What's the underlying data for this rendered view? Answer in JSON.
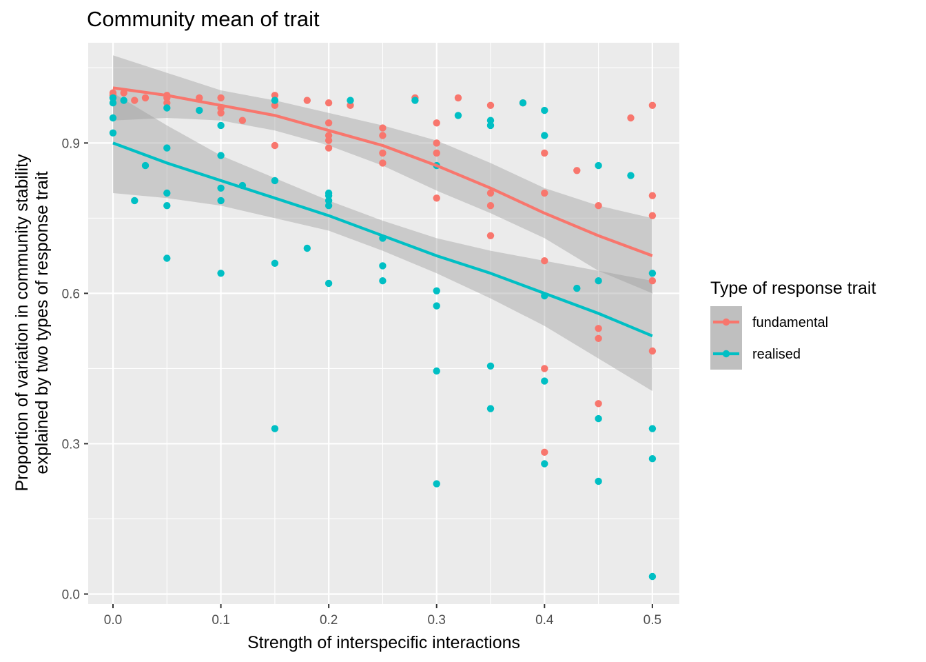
{
  "chart_data": {
    "type": "scatter",
    "title": "Community mean of trait",
    "xlabel": "Strength of interspecific interactions",
    "ylabel_lines": [
      "Proportion of variation in community stability",
      "explained by two types of response trait"
    ],
    "xlim": [
      -0.023,
      0.525
    ],
    "ylim": [
      -0.02,
      1.1
    ],
    "x_ticks": [
      0.0,
      0.1,
      0.2,
      0.3,
      0.4,
      0.5
    ],
    "x_tick_labels": [
      "0.0",
      "0.1",
      "0.2",
      "0.3",
      "0.4",
      "0.5"
    ],
    "y_ticks": [
      0.0,
      0.3,
      0.6,
      0.9
    ],
    "y_tick_labels": [
      "0.0",
      "0.3",
      "0.6",
      "0.9"
    ],
    "grid": true,
    "legend": {
      "title": "Type of response trait",
      "placement": "right"
    },
    "series": [
      {
        "name": "fundamental",
        "color": "#F8766D",
        "points": [
          [
            0.0,
            1.0
          ],
          [
            0.0,
            0.995
          ],
          [
            0.0,
            0.99
          ],
          [
            0.01,
            1.0
          ],
          [
            0.02,
            0.985
          ],
          [
            0.03,
            0.99
          ],
          [
            0.05,
            0.995
          ],
          [
            0.05,
            0.99
          ],
          [
            0.05,
            0.98
          ],
          [
            0.08,
            0.99
          ],
          [
            0.1,
            0.99
          ],
          [
            0.1,
            0.97
          ],
          [
            0.1,
            0.96
          ],
          [
            0.12,
            0.945
          ],
          [
            0.15,
            0.995
          ],
          [
            0.15,
            0.975
          ],
          [
            0.15,
            0.895
          ],
          [
            0.18,
            0.985
          ],
          [
            0.2,
            0.98
          ],
          [
            0.2,
            0.94
          ],
          [
            0.2,
            0.915
          ],
          [
            0.2,
            0.905
          ],
          [
            0.2,
            0.89
          ],
          [
            0.22,
            0.975
          ],
          [
            0.25,
            0.93
          ],
          [
            0.25,
            0.915
          ],
          [
            0.25,
            0.88
          ],
          [
            0.25,
            0.86
          ],
          [
            0.28,
            0.99
          ],
          [
            0.3,
            0.94
          ],
          [
            0.3,
            0.9
          ],
          [
            0.3,
            0.88
          ],
          [
            0.3,
            0.79
          ],
          [
            0.32,
            0.99
          ],
          [
            0.35,
            0.975
          ],
          [
            0.35,
            0.8
          ],
          [
            0.35,
            0.775
          ],
          [
            0.35,
            0.715
          ],
          [
            0.38,
            0.98
          ],
          [
            0.4,
            0.88
          ],
          [
            0.4,
            0.8
          ],
          [
            0.4,
            0.665
          ],
          [
            0.4,
            0.45
          ],
          [
            0.4,
            0.283
          ],
          [
            0.43,
            0.845
          ],
          [
            0.45,
            0.775
          ],
          [
            0.45,
            0.53
          ],
          [
            0.45,
            0.51
          ],
          [
            0.45,
            0.38
          ],
          [
            0.48,
            0.95
          ],
          [
            0.5,
            0.975
          ],
          [
            0.5,
            0.795
          ],
          [
            0.5,
            0.755
          ],
          [
            0.5,
            0.625
          ],
          [
            0.5,
            0.485
          ]
        ],
        "trend": {
          "x": [
            0.0,
            0.05,
            0.1,
            0.15,
            0.2,
            0.25,
            0.3,
            0.35,
            0.4,
            0.45,
            0.5
          ],
          "fit": [
            1.01,
            0.995,
            0.975,
            0.955,
            0.925,
            0.895,
            0.855,
            0.81,
            0.76,
            0.715,
            0.675
          ],
          "lower": [
            0.945,
            0.95,
            0.945,
            0.925,
            0.895,
            0.855,
            0.805,
            0.76,
            0.71,
            0.645,
            0.6
          ],
          "upper": [
            1.075,
            1.04,
            1.005,
            0.985,
            0.96,
            0.935,
            0.905,
            0.86,
            0.81,
            0.775,
            0.75
          ]
        }
      },
      {
        "name": "realised",
        "color": "#00BFC4",
        "points": [
          [
            0.0,
            0.99
          ],
          [
            0.0,
            0.98
          ],
          [
            0.0,
            0.95
          ],
          [
            0.0,
            0.92
          ],
          [
            0.01,
            0.985
          ],
          [
            0.02,
            0.785
          ],
          [
            0.03,
            0.855
          ],
          [
            0.05,
            0.97
          ],
          [
            0.05,
            0.89
          ],
          [
            0.05,
            0.8
          ],
          [
            0.05,
            0.775
          ],
          [
            0.05,
            0.67
          ],
          [
            0.08,
            0.965
          ],
          [
            0.1,
            0.935
          ],
          [
            0.1,
            0.875
          ],
          [
            0.1,
            0.81
          ],
          [
            0.1,
            0.785
          ],
          [
            0.1,
            0.64
          ],
          [
            0.12,
            0.815
          ],
          [
            0.15,
            0.985
          ],
          [
            0.15,
            0.825
          ],
          [
            0.15,
            0.66
          ],
          [
            0.15,
            0.33
          ],
          [
            0.18,
            0.69
          ],
          [
            0.2,
            0.8
          ],
          [
            0.2,
            0.795
          ],
          [
            0.2,
            0.785
          ],
          [
            0.2,
            0.775
          ],
          [
            0.2,
            0.62
          ],
          [
            0.22,
            0.985
          ],
          [
            0.25,
            0.71
          ],
          [
            0.25,
            0.655
          ],
          [
            0.25,
            0.625
          ],
          [
            0.28,
            0.985
          ],
          [
            0.3,
            0.855
          ],
          [
            0.3,
            0.605
          ],
          [
            0.3,
            0.575
          ],
          [
            0.3,
            0.445
          ],
          [
            0.3,
            0.22
          ],
          [
            0.32,
            0.955
          ],
          [
            0.35,
            0.945
          ],
          [
            0.35,
            0.935
          ],
          [
            0.35,
            0.455
          ],
          [
            0.35,
            0.37
          ],
          [
            0.38,
            0.98
          ],
          [
            0.4,
            0.965
          ],
          [
            0.4,
            0.915
          ],
          [
            0.4,
            0.595
          ],
          [
            0.4,
            0.425
          ],
          [
            0.4,
            0.26
          ],
          [
            0.43,
            0.61
          ],
          [
            0.45,
            0.855
          ],
          [
            0.45,
            0.625
          ],
          [
            0.45,
            0.35
          ],
          [
            0.45,
            0.225
          ],
          [
            0.48,
            0.835
          ],
          [
            0.5,
            0.64
          ],
          [
            0.5,
            0.33
          ],
          [
            0.5,
            0.27
          ],
          [
            0.5,
            0.035
          ]
        ],
        "trend": {
          "x": [
            0.0,
            0.05,
            0.1,
            0.15,
            0.2,
            0.25,
            0.3,
            0.35,
            0.4,
            0.45,
            0.5
          ],
          "fit": [
            0.9,
            0.86,
            0.825,
            0.79,
            0.755,
            0.715,
            0.675,
            0.64,
            0.6,
            0.56,
            0.515
          ],
          "lower": [
            0.8,
            0.79,
            0.775,
            0.75,
            0.725,
            0.685,
            0.64,
            0.59,
            0.535,
            0.47,
            0.405
          ],
          "upper": [
            1.0,
            0.935,
            0.875,
            0.83,
            0.785,
            0.745,
            0.71,
            0.685,
            0.665,
            0.645,
            0.625
          ]
        }
      }
    ]
  }
}
